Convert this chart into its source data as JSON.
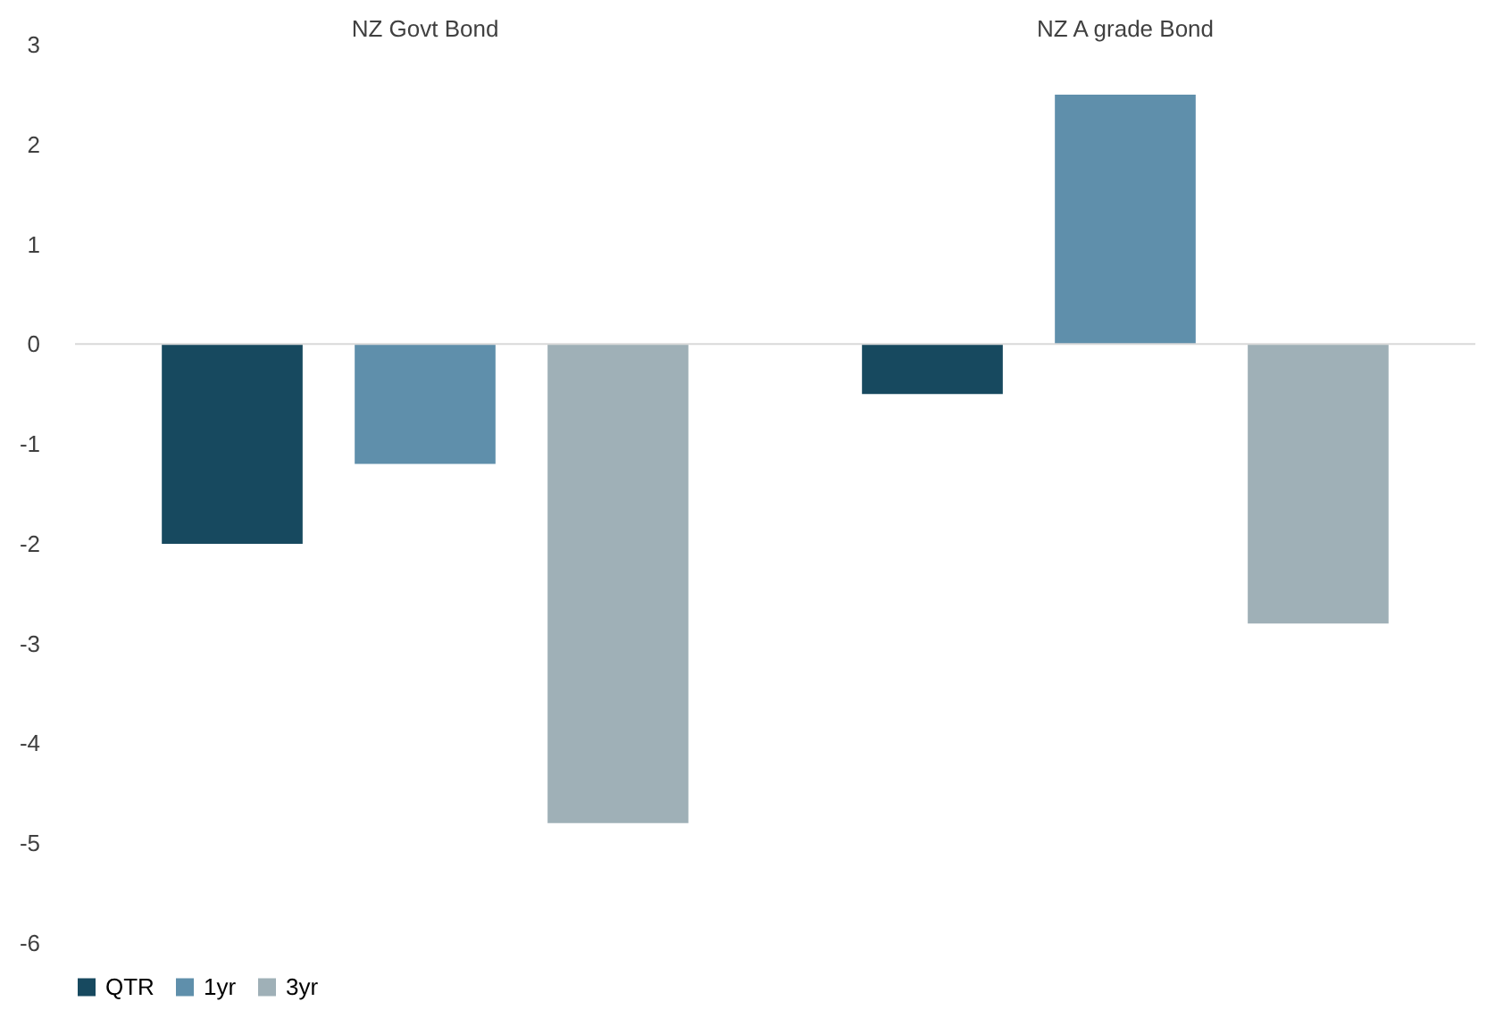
{
  "chart_data": {
    "type": "bar",
    "categories": [
      "NZ Govt Bond",
      "NZ A grade Bond"
    ],
    "series": [
      {
        "name": "QTR",
        "color": "#17495f",
        "values": [
          -2.0,
          -0.5
        ]
      },
      {
        "name": "1yr",
        "color": "#5f8fab",
        "values": [
          -1.2,
          2.5
        ]
      },
      {
        "name": "3yr",
        "color": "#9fb0b7",
        "values": [
          -4.8,
          -2.8
        ]
      }
    ],
    "ylim": [
      -6,
      3
    ],
    "yticks": [
      -6,
      -5,
      -4,
      -3,
      -2,
      -1,
      0,
      1,
      2,
      3
    ],
    "ref_lines": [
      {
        "axis": "y",
        "value": 0,
        "color": "#d9d9d9"
      }
    ],
    "grid": false,
    "legend": "bottom"
  }
}
